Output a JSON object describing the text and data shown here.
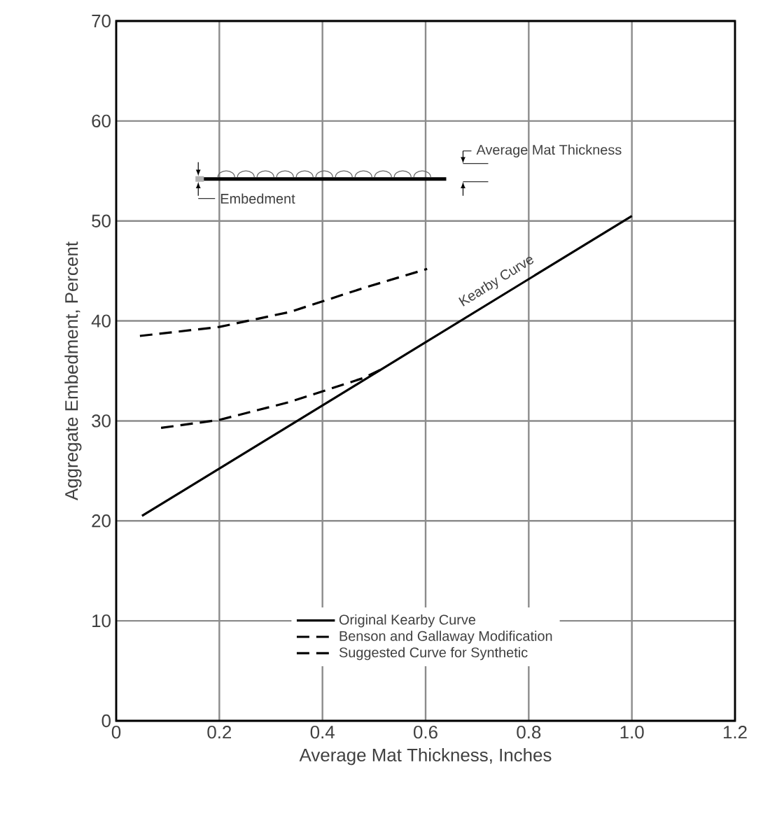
{
  "chart_data": {
    "type": "line",
    "xlabel": "Average Mat Thickness, Inches",
    "ylabel": "Aggregate Embedment, Percent",
    "xlim": [
      0,
      1.2
    ],
    "xticks": [
      0,
      0.2,
      0.4,
      0.6,
      0.8,
      {
        "value": 1.0,
        "label": "1.0"
      },
      1.2
    ],
    "ylim": [
      0,
      70
    ],
    "yticks": [
      0,
      10,
      20,
      30,
      40,
      50,
      60,
      70
    ],
    "grid": true,
    "legend": "bottom",
    "marker": "none",
    "series": [
      {
        "name": "Original Kearby Curve",
        "color": "#000000",
        "line_style": "solid",
        "x": [
          0.05,
          1.0
        ],
        "values": [
          20.5,
          50.5
        ]
      },
      {
        "name": "Benson and Gallaway Modification",
        "color": "#000000",
        "line_style": "dashed",
        "x": [
          0.087,
          0.2,
          0.337,
          0.48,
          0.52
        ],
        "values": [
          29.3,
          30.1,
          31.9,
          34.3,
          35.3
        ]
      },
      {
        "name": "Suggested Curve for Synthetic",
        "color": "#000000",
        "line_style": "dashed",
        "x": [
          0.046,
          0.2,
          0.337,
          0.48,
          0.603
        ],
        "values": [
          38.5,
          39.4,
          40.9,
          43.3,
          45.2
        ]
      }
    ],
    "annotations": [
      {
        "text": "Kearby Curve",
        "x": 0.75,
        "y": 43
      },
      "Average Mat Thickness",
      "Embedment"
    ]
  }
}
